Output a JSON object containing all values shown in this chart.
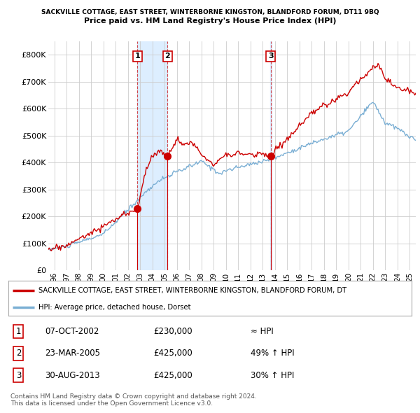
{
  "title_line1": "SACKVILLE COTTAGE, EAST STREET, WINTERBORNE KINGSTON, BLANDFORD FORUM, DT11 9BQ",
  "title_line2": "Price paid vs. HM Land Registry's House Price Index (HPI)",
  "xlim_start": 1995.5,
  "xlim_end": 2025.5,
  "ylim": [
    0,
    850000
  ],
  "yticks": [
    0,
    100000,
    200000,
    300000,
    400000,
    500000,
    600000,
    700000,
    800000
  ],
  "ytick_labels": [
    "£0",
    "£100K",
    "£200K",
    "£300K",
    "£400K",
    "£500K",
    "£600K",
    "£700K",
    "£800K"
  ],
  "hpi_color": "#7bafd4",
  "sale_color": "#cc0000",
  "shade_color": "#ddeeff",
  "sale_points": [
    {
      "year": 2002.77,
      "price": 230000,
      "label": "1"
    },
    {
      "year": 2005.23,
      "price": 425000,
      "label": "2"
    },
    {
      "year": 2013.66,
      "price": 425000,
      "label": "3"
    }
  ],
  "legend_sale_label": "SACKVILLE COTTAGE, EAST STREET, WINTERBORNE KINGSTON, BLANDFORD FORUM, DT",
  "legend_hpi_label": "HPI: Average price, detached house, Dorset",
  "table_rows": [
    {
      "num": "1",
      "date": "07-OCT-2002",
      "price": "£230,000",
      "relation": "≈ HPI"
    },
    {
      "num": "2",
      "date": "23-MAR-2005",
      "price": "£425,000",
      "relation": "49% ↑ HPI"
    },
    {
      "num": "3",
      "date": "30-AUG-2013",
      "price": "£425,000",
      "relation": "30% ↑ HPI"
    }
  ],
  "footer_text": "Contains HM Land Registry data © Crown copyright and database right 2024.\nThis data is licensed under the Open Government Licence v3.0.",
  "background_color": "#ffffff",
  "grid_color": "#cccccc",
  "xtick_years": [
    1996,
    1997,
    1998,
    1999,
    2000,
    2001,
    2002,
    2003,
    2004,
    2005,
    2006,
    2007,
    2008,
    2009,
    2010,
    2011,
    2012,
    2013,
    2014,
    2015,
    2016,
    2017,
    2018,
    2019,
    2020,
    2021,
    2022,
    2023,
    2024,
    2025
  ]
}
